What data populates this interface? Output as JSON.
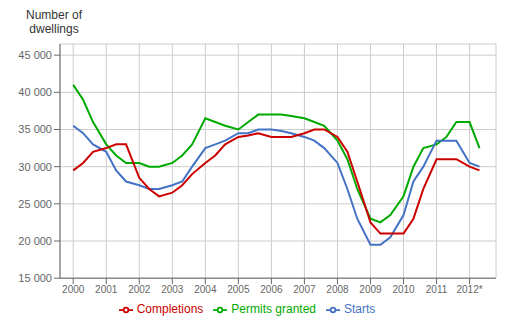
{
  "chart_data": {
    "type": "line",
    "ylabel": "Number of\ndwellings",
    "x": [
      2000,
      2000.3,
      2000.6,
      2001.0,
      2001.3,
      2001.6,
      2002.0,
      2002.3,
      2002.6,
      2003.0,
      2003.3,
      2003.6,
      2004.0,
      2004.3,
      2004.6,
      2005.0,
      2005.3,
      2005.6,
      2006.0,
      2006.3,
      2006.6,
      2007.0,
      2007.3,
      2007.6,
      2008.0,
      2008.3,
      2008.6,
      2009.0,
      2009.3,
      2009.6,
      2010.0,
      2010.3,
      2010.6,
      2011.0,
      2011.3,
      2011.6,
      2012.0,
      2012.3
    ],
    "series": [
      {
        "name": "Permits granted",
        "color": "#00aa00",
        "values": [
          41000,
          39000,
          36000,
          33000,
          31500,
          30500,
          30500,
          30000,
          30000,
          30500,
          31500,
          33000,
          36500,
          36000,
          35500,
          35000,
          36000,
          37000,
          37000,
          37000,
          36800,
          36500,
          36000,
          35500,
          33500,
          31000,
          27000,
          23000,
          22500,
          23500,
          26000,
          30000,
          32500,
          33000,
          34000,
          36000,
          36000,
          32500
        ]
      },
      {
        "name": "Starts",
        "color": "#4472c4",
        "values": [
          35500,
          34500,
          33000,
          32000,
          29500,
          28000,
          27500,
          27000,
          27000,
          27500,
          28000,
          30000,
          32500,
          33000,
          33500,
          34500,
          34500,
          35000,
          35000,
          34800,
          34500,
          34000,
          33500,
          32500,
          30500,
          27000,
          23000,
          19500,
          19500,
          20500,
          23500,
          28000,
          30000,
          33500,
          33500,
          33500,
          30500,
          30000
        ]
      },
      {
        "name": "Completions",
        "color": "#cc0000",
        "values": [
          29500,
          30500,
          32000,
          32500,
          33000,
          33000,
          28500,
          27000,
          26000,
          26500,
          27500,
          29000,
          30500,
          31500,
          33000,
          34000,
          34200,
          34500,
          34000,
          34000,
          34000,
          34500,
          35000,
          35000,
          34000,
          32000,
          28000,
          22500,
          21000,
          21000,
          21000,
          23000,
          27000,
          31000,
          31000,
          31000,
          30000,
          29500
        ]
      }
    ],
    "xlim": [
      1999.6,
      2012.8
    ],
    "xticks": [
      2000,
      2001,
      2002,
      2003,
      2004,
      2005,
      2006,
      2007,
      2008,
      2009,
      2010,
      2011,
      {
        "value": 2012,
        "label": "2012*"
      }
    ],
    "ylim": [
      15000,
      46500
    ],
    "yticks": [
      {
        "value": 15000,
        "label": "15 000"
      },
      {
        "value": 20000,
        "label": "20 000"
      },
      {
        "value": 25000,
        "label": "25 000"
      },
      {
        "value": 30000,
        "label": "30 000"
      },
      {
        "value": 35000,
        "label": "35 000"
      },
      {
        "value": 40000,
        "label": "40 000"
      },
      {
        "value": 45000,
        "label": "45 000"
      }
    ],
    "grid": true,
    "legend": "bottom"
  }
}
